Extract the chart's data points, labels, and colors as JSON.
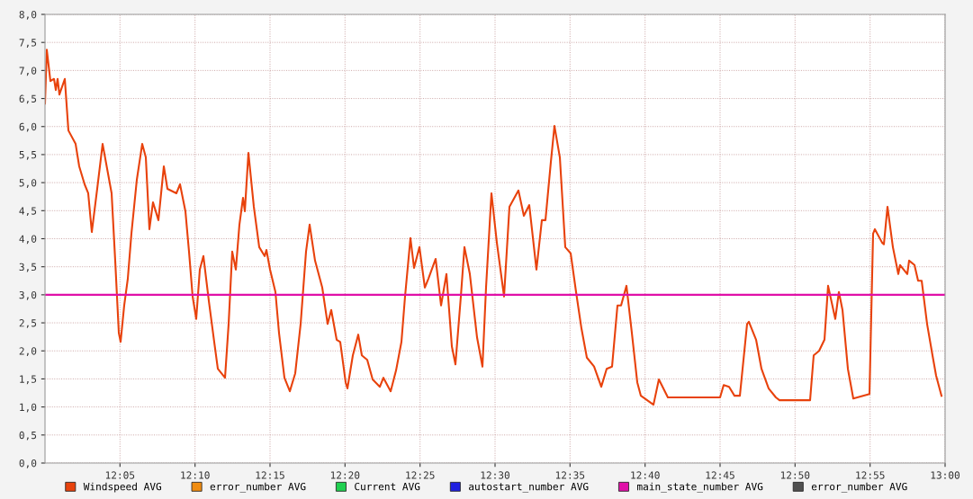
{
  "chart_data": {
    "type": "line",
    "legend": "bottom",
    "grid": true,
    "marker": "none",
    "line_style": "solid",
    "xlim": [
      12.0,
      13.0
    ],
    "xticks": [
      {
        "value": 12.0833,
        "label": "12:05"
      },
      {
        "value": 12.1667,
        "label": "12:10"
      },
      {
        "value": 12.25,
        "label": "12:15"
      },
      {
        "value": 12.3333,
        "label": "12:20"
      },
      {
        "value": 12.4167,
        "label": "12:25"
      },
      {
        "value": 12.5,
        "label": "12:30"
      },
      {
        "value": 12.5833,
        "label": "12:35"
      },
      {
        "value": 12.6667,
        "label": "12:40"
      },
      {
        "value": 12.75,
        "label": "12:45"
      },
      {
        "value": 12.8333,
        "label": "12:50"
      },
      {
        "value": 12.9167,
        "label": "12:55"
      },
      {
        "value": 13.0,
        "label": "13:00"
      }
    ],
    "ylim": [
      0,
      8
    ],
    "yticks": [
      {
        "value": 0,
        "label": "0,0"
      },
      {
        "value": 0.5,
        "label": "0,5"
      },
      {
        "value": 1,
        "label": "1,0"
      },
      {
        "value": 1.5,
        "label": "1,5"
      },
      {
        "value": 2,
        "label": "2,0"
      },
      {
        "value": 2.5,
        "label": "2,5"
      },
      {
        "value": 3,
        "label": "3,0"
      },
      {
        "value": 3.5,
        "label": "3,5"
      },
      {
        "value": 4,
        "label": "4,0"
      },
      {
        "value": 4.5,
        "label": "4,5"
      },
      {
        "value": 5,
        "label": "5,0"
      },
      {
        "value": 5.5,
        "label": "5,5"
      },
      {
        "value": 6,
        "label": "6,0"
      },
      {
        "value": 6.5,
        "label": "6,5"
      },
      {
        "value": 7,
        "label": "7,0"
      },
      {
        "value": 7.5,
        "label": "7,5"
      },
      {
        "value": 8,
        "label": "8,0"
      }
    ],
    "series": [
      {
        "name": "Windspeed AVG",
        "color": "#e8420c",
        "x": [
          12.0,
          12.002,
          12.006,
          12.01,
          12.012,
          12.014,
          12.016,
          12.022,
          12.026,
          12.034,
          12.038,
          12.044,
          12.048,
          12.052,
          12.058,
          12.064,
          12.074,
          12.078,
          12.082,
          12.084,
          12.088,
          12.092,
          12.096,
          12.102,
          12.108,
          12.112,
          12.116,
          12.12,
          12.126,
          12.132,
          12.136,
          12.146,
          12.15,
          12.156,
          12.16,
          12.164,
          12.168,
          12.172,
          12.176,
          12.182,
          12.188,
          12.192,
          12.2,
          12.204,
          12.208,
          12.212,
          12.216,
          12.22,
          12.222,
          12.226,
          12.232,
          12.238,
          12.244,
          12.246,
          12.25,
          12.256,
          12.26,
          12.266,
          12.272,
          12.278,
          12.284,
          12.29,
          12.294,
          12.3,
          12.308,
          12.314,
          12.318,
          12.324,
          12.328,
          12.334,
          12.336,
          12.342,
          12.348,
          12.352,
          12.358,
          12.364,
          12.372,
          12.376,
          12.384,
          12.39,
          12.396,
          12.4,
          12.406,
          12.41,
          12.416,
          12.422,
          12.426,
          12.434,
          12.44,
          12.446,
          12.452,
          12.456,
          12.462,
          12.466,
          12.472,
          12.48,
          12.486,
          12.49,
          12.496,
          12.502,
          12.51,
          12.516,
          12.526,
          12.532,
          12.538,
          12.546,
          12.552,
          12.556,
          12.562,
          12.566,
          12.572,
          12.578,
          12.584,
          12.59,
          12.596,
          12.602,
          12.61,
          12.618,
          12.624,
          12.63,
          12.636,
          12.64,
          12.646,
          12.652,
          12.658,
          12.662,
          12.676,
          12.682,
          12.692,
          12.75,
          12.754,
          12.76,
          12.766,
          12.772,
          12.78,
          12.782,
          12.79,
          12.796,
          12.804,
          12.812,
          12.816,
          12.85,
          12.854,
          12.86,
          12.866,
          12.87,
          12.878,
          12.882,
          12.886,
          12.892,
          12.898,
          12.916,
          12.92,
          12.922,
          12.93,
          12.932,
          12.936,
          12.942,
          12.948,
          12.95,
          12.958,
          12.96,
          12.966,
          12.97,
          12.974,
          12.98,
          12.986,
          12.99,
          12.996
        ],
        "values": [
          6.41,
          7.37,
          6.81,
          6.85,
          6.65,
          6.85,
          6.57,
          6.85,
          5.93,
          5.69,
          5.29,
          4.97,
          4.81,
          4.12,
          4.89,
          5.69,
          4.81,
          3.61,
          2.32,
          2.16,
          2.81,
          3.29,
          4.09,
          5.05,
          5.69,
          5.45,
          4.17,
          4.65,
          4.33,
          5.29,
          4.89,
          4.81,
          4.97,
          4.49,
          3.77,
          2.97,
          2.57,
          3.45,
          3.69,
          2.89,
          2.16,
          1.68,
          1.52,
          2.48,
          3.77,
          3.45,
          4.25,
          4.73,
          4.49,
          5.53,
          4.57,
          3.85,
          3.69,
          3.8,
          3.45,
          3.05,
          2.32,
          1.52,
          1.28,
          1.6,
          2.48,
          3.77,
          4.25,
          3.61,
          3.13,
          2.48,
          2.73,
          2.2,
          2.16,
          1.44,
          1.33,
          1.92,
          2.29,
          1.92,
          1.84,
          1.49,
          1.36,
          1.52,
          1.28,
          1.65,
          2.16,
          2.97,
          4.01,
          3.48,
          3.85,
          3.13,
          3.29,
          3.64,
          2.81,
          3.37,
          2.08,
          1.76,
          2.97,
          3.85,
          3.37,
          2.24,
          1.72,
          3.13,
          4.81,
          3.93,
          2.97,
          4.57,
          4.86,
          4.41,
          4.6,
          3.45,
          4.33,
          4.33,
          5.37,
          6.01,
          5.45,
          3.85,
          3.74,
          3.05,
          2.4,
          1.88,
          1.72,
          1.36,
          1.68,
          1.72,
          2.81,
          2.81,
          3.16,
          2.32,
          1.44,
          1.2,
          1.04,
          1.49,
          1.17,
          1.17,
          1.39,
          1.36,
          1.2,
          1.2,
          2.48,
          2.52,
          2.2,
          1.68,
          1.33,
          1.17,
          1.12,
          1.12,
          1.92,
          2.0,
          2.2,
          3.16,
          2.57,
          3.05,
          2.73,
          1.68,
          1.15,
          1.23,
          4.09,
          4.17,
          3.93,
          3.9,
          4.57,
          3.85,
          3.37,
          3.53,
          3.37,
          3.61,
          3.53,
          3.25,
          3.25,
          2.48,
          1.92,
          1.56,
          1.2
        ]
      },
      {
        "name": "error_number AVG",
        "color": "#f08c10"
      },
      {
        "name": "Current AVG",
        "color": "#20d050"
      },
      {
        "name": "autostart_number AVG",
        "color": "#2020e0"
      },
      {
        "name": "main_state_number AVG",
        "color": "#e010a8",
        "x": [
          12.0,
          13.0
        ],
        "values": [
          3,
          3
        ]
      },
      {
        "name": "error_number AVG",
        "color": "#505050"
      }
    ]
  }
}
